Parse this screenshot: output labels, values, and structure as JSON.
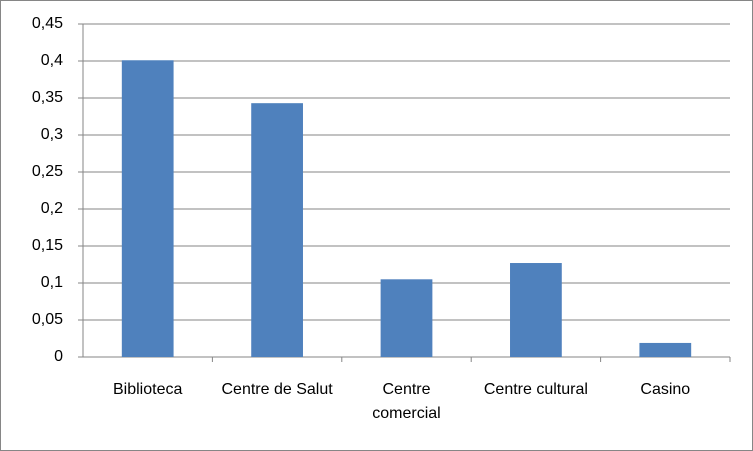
{
  "chart_data": {
    "type": "bar",
    "categories": [
      "Biblioteca",
      "Centre de Salut",
      "Centre comercial",
      "Centre cultural",
      "Casino"
    ],
    "values": [
      0.401,
      0.343,
      0.105,
      0.127,
      0.019
    ],
    "color": "#4f81bd",
    "ylim": [
      0,
      0.45
    ],
    "yticks": [
      0,
      {
        "value": 0.05,
        "label": "0,05"
      },
      {
        "value": 0.1,
        "label": "0,1"
      },
      {
        "value": 0.15,
        "label": "0,15"
      },
      {
        "value": 0.2,
        "label": "0,2"
      },
      {
        "value": 0.25,
        "label": "0,25"
      },
      {
        "value": 0.3,
        "label": "0,3"
      },
      {
        "value": 0.35,
        "label": "0,35"
      },
      {
        "value": 0.4,
        "label": "0,4"
      },
      {
        "value": 0.45,
        "label": "0,45"
      }
    ],
    "grid": true
  }
}
